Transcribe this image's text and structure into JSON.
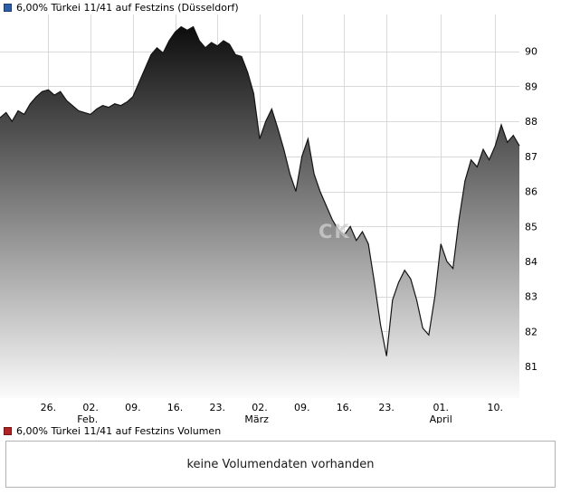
{
  "price_panel": {
    "legend_label": "6,00% Türkei 11/41 auf Festzins (Düsseldorf)",
    "legend_color": "#2d5fa8"
  },
  "volume_panel": {
    "legend_label": "6,00% Türkei 11/41 auf Festzins Volumen",
    "legend_color": "#b22222",
    "empty_message": "keine Volumendaten vorhanden"
  },
  "watermark": "CK",
  "chart_data": {
    "type": "area",
    "title": "6,00% Türkei 11/41 auf Festzins (Düsseldorf)",
    "x_domain": [
      0,
      86
    ],
    "ylim": [
      80.1,
      91.05
    ],
    "ylabel": "",
    "xlabel": "",
    "grid": true,
    "legend_position": "top-left",
    "line_color": "#141414",
    "fill_gradient_top": "#050505",
    "fill_gradient_bottom": "#fbfbfb",
    "grid_color": "#d9d9d9",
    "y_ticks": [
      81,
      82,
      83,
      84,
      85,
      86,
      87,
      88,
      89,
      90
    ],
    "x_ticks": [
      {
        "pos": 8,
        "label": "26."
      },
      {
        "pos": 15,
        "label": "02."
      },
      {
        "pos": 22,
        "label": "09."
      },
      {
        "pos": 29,
        "label": "16."
      },
      {
        "pos": 36,
        "label": "23."
      },
      {
        "pos": 43,
        "label": "02."
      },
      {
        "pos": 50,
        "label": "09."
      },
      {
        "pos": 57,
        "label": "16."
      },
      {
        "pos": 64,
        "label": "23."
      },
      {
        "pos": 73,
        "label": "01."
      },
      {
        "pos": 82,
        "label": "10."
      }
    ],
    "month_labels": [
      {
        "pos": 14.5,
        "label": "Feb."
      },
      {
        "pos": 42.5,
        "label": "März"
      },
      {
        "pos": 73,
        "label": "April"
      }
    ],
    "series": [
      {
        "name": "6,00% Türkei 11/41 auf Festzins (Düsseldorf)",
        "values": [
          88.1,
          88.25,
          88.0,
          88.3,
          88.2,
          88.5,
          88.7,
          88.85,
          88.9,
          88.75,
          88.85,
          88.6,
          88.45,
          88.3,
          88.25,
          88.2,
          88.35,
          88.45,
          88.4,
          88.5,
          88.45,
          88.55,
          88.7,
          89.1,
          89.5,
          89.9,
          90.1,
          89.95,
          90.3,
          90.55,
          90.7,
          90.6,
          90.7,
          90.3,
          90.1,
          90.25,
          90.15,
          90.3,
          90.2,
          89.9,
          89.85,
          89.4,
          88.8,
          87.5,
          88.0,
          88.35,
          87.8,
          87.2,
          86.5,
          86.0,
          87.0,
          87.5,
          86.5,
          86.0,
          85.6,
          85.2,
          84.9,
          84.75,
          85.0,
          84.6,
          84.85,
          84.5,
          83.4,
          82.2,
          81.3,
          82.9,
          83.4,
          83.75,
          83.5,
          82.9,
          82.1,
          81.9,
          83.0,
          84.5,
          84.0,
          83.8,
          85.2,
          86.3,
          86.9,
          86.7,
          87.2,
          86.9,
          87.3,
          87.9,
          87.4,
          87.6,
          87.3
        ]
      }
    ]
  }
}
